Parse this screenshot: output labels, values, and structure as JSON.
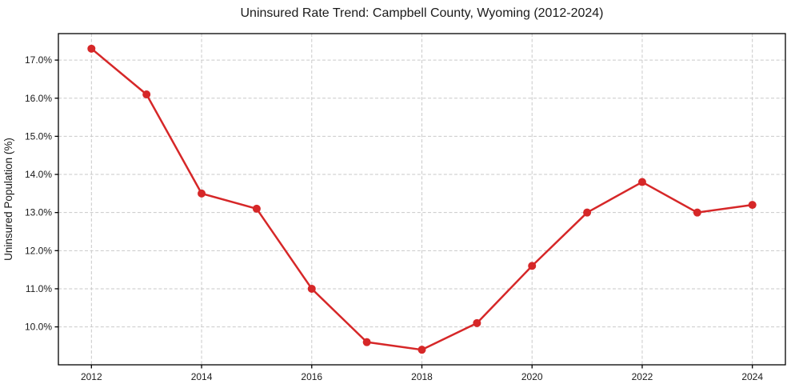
{
  "chart_data": {
    "type": "line",
    "title": "Uninsured Rate Trend: Campbell County, Wyoming (2012-2024)",
    "xlabel": "",
    "ylabel": "Uninsured Population (%)",
    "x": [
      2012,
      2013,
      2014,
      2015,
      2016,
      2017,
      2018,
      2019,
      2020,
      2021,
      2022,
      2023,
      2024
    ],
    "values": [
      17.3,
      16.1,
      13.5,
      13.1,
      11.0,
      9.6,
      9.4,
      10.1,
      11.6,
      13.0,
      13.8,
      13.0,
      13.2
    ],
    "xlim": [
      2011.4,
      2024.6
    ],
    "ylim": [
      9.005,
      17.695
    ],
    "xticks": [
      2012,
      2014,
      2016,
      2018,
      2020,
      2022,
      2024
    ],
    "x_tick_labels": [
      "2012",
      "2014",
      "2016",
      "2018",
      "2020",
      "2022",
      "2024"
    ],
    "yticks": [
      10,
      11,
      12,
      13,
      14,
      15,
      16,
      17
    ],
    "y_tick_labels": [
      "10.0%",
      "11.0%",
      "12.0%",
      "13.0%",
      "14.0%",
      "15.0%",
      "16.0%",
      "17.0%"
    ],
    "grid": true,
    "legend": "none",
    "marker": "circle",
    "colors": {
      "line": "#d62728",
      "marker": "#d62728",
      "grid": "#c9c9c9",
      "axis": "#000000",
      "text": "#1a1a1a",
      "background": "#ffffff"
    }
  }
}
